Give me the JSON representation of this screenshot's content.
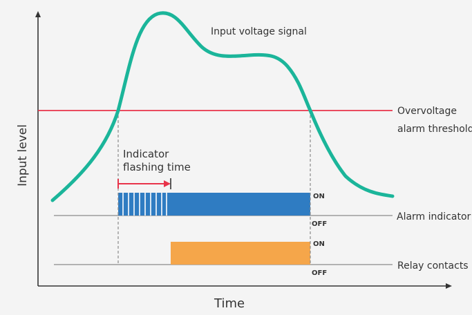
{
  "diagram": {
    "y_axis_label": "Input level",
    "x_axis_label": "Time",
    "signal_label": "Input voltage signal",
    "threshold_label_line1": "Overvoltage",
    "threshold_label_line2": "alarm threshold",
    "flash_label_line1": "Indicator",
    "flash_label_line2": "flashing time",
    "alarm_label": "Alarm indicator",
    "relay_label": "Relay contacts",
    "alarm_on": "ON",
    "alarm_off": "OFF",
    "relay_on": "ON",
    "relay_off": "OFF",
    "colors": {
      "background": "#f4f4f4",
      "signal": "#1bb59a",
      "threshold": "#e8334a",
      "alarm_bar": "#2f7cc2",
      "relay_bar": "#f5a64a",
      "axis": "#333333",
      "baseline": "#8a8a8a"
    }
  }
}
